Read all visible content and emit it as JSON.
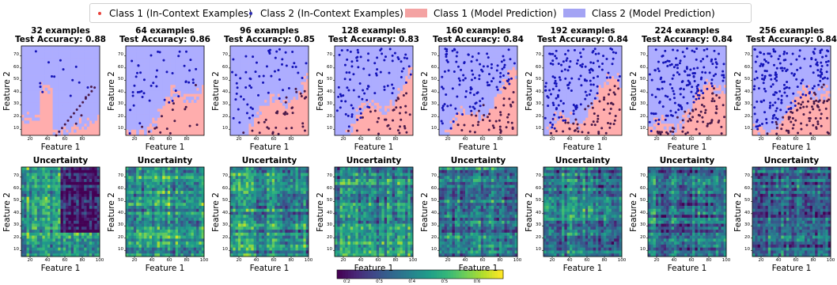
{
  "legend": [
    {
      "label": "Class 1 (In-Context Examples)",
      "kind": "dot",
      "color": "#e8413a"
    },
    {
      "label": "Class 2 (In-Context Examples)",
      "kind": "dot",
      "color": "#2b2bb0"
    },
    {
      "label": "Class 1 (Model Prediction)",
      "kind": "patch",
      "color": "#f4a3a3"
    },
    {
      "label": "Class 2 (Model Prediction)",
      "kind": "patch",
      "color": "#a4a4f4"
    }
  ],
  "colors": {
    "class1_region": "#ffadad",
    "class2_region": "#adadff",
    "class1_point": "#4a1a4a",
    "class2_point": "#1515b8"
  },
  "chart_data": [
    {
      "type": "scatter",
      "row": "prediction",
      "panels": [
        {
          "title": "32 examples",
          "subtitle": "Test Accuracy: 0.88",
          "n": 32,
          "accuracy": 0.88
        },
        {
          "title": "64 examples",
          "subtitle": "Test Accuracy: 0.86",
          "n": 64,
          "accuracy": 0.86
        },
        {
          "title": "96 examples",
          "subtitle": "Test Accuracy: 0.85",
          "n": 96,
          "accuracy": 0.85
        },
        {
          "title": "128 examples",
          "subtitle": "Test Accuracy: 0.83",
          "n": 128,
          "accuracy": 0.83
        },
        {
          "title": "160 examples",
          "subtitle": "Test Accuracy: 0.84",
          "n": 160,
          "accuracy": 0.84
        },
        {
          "title": "192 examples",
          "subtitle": "Test Accuracy: 0.84",
          "n": 192,
          "accuracy": 0.84
        },
        {
          "title": "224 examples",
          "subtitle": "Test Accuracy: 0.84",
          "n": 224,
          "accuracy": 0.84
        },
        {
          "title": "256 examples",
          "subtitle": "Test Accuracy: 0.84",
          "n": 256,
          "accuracy": 0.84
        }
      ],
      "xlabel": "Feature 1",
      "ylabel": "Feature 2",
      "xlim": [
        10,
        100
      ],
      "ylim": [
        5,
        78
      ],
      "xticks": [
        20,
        40,
        60,
        80
      ],
      "yticks": [
        10,
        20,
        30,
        40,
        50,
        60,
        70
      ]
    },
    {
      "type": "heatmap",
      "row": "uncertainty",
      "title": "Uncertainty",
      "xlabel": "Feature 1",
      "ylabel": "Feature 2",
      "xlim": [
        10,
        100
      ],
      "ylim": [
        5,
        78
      ],
      "xticks": [
        20,
        40,
        60,
        80,
        100
      ],
      "yticks": [
        10,
        20,
        30,
        40,
        50,
        60,
        70
      ],
      "colorbar": {
        "range": [
          0.17,
          0.68
        ],
        "ticks": [
          0.2,
          0.3,
          0.4,
          0.5,
          0.6
        ]
      }
    }
  ]
}
